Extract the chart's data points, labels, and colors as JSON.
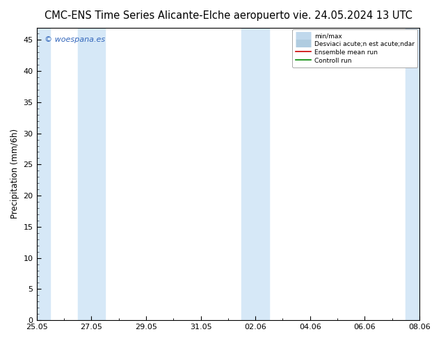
{
  "title_left": "CMC-ENS Time Series Alicante-Elche aeropuerto",
  "title_right": "vie. 24.05.2024 13 UTC",
  "ylabel": "Precipitation (mm/6h)",
  "ylim": [
    0,
    47
  ],
  "yticks": [
    0,
    5,
    10,
    15,
    20,
    25,
    30,
    35,
    40,
    45
  ],
  "x_tick_labels": [
    "25.05",
    "27.05",
    "29.05",
    "31.05",
    "02.06",
    "04.06",
    "06.06",
    "08.06"
  ],
  "x_tick_positions": [
    0,
    2,
    4,
    6,
    8,
    10,
    12,
    14
  ],
  "x_minor_tick_positions": [
    1,
    3,
    5,
    7,
    9,
    11,
    13
  ],
  "x_total": 14,
  "shaded_bands": [
    [
      0,
      0.5
    ],
    [
      1.5,
      2.5
    ],
    [
      7.5,
      8.5
    ],
    [
      13.5,
      14
    ]
  ],
  "shade_color": "#d6e8f7",
  "bg_color": "#ffffff",
  "plot_bg_color": "#ffffff",
  "legend_minmax_color": "#c0d8ec",
  "legend_std_color": "#b0cce0",
  "ensemble_mean_color": "#cc0000",
  "control_run_color": "#008800",
  "watermark_text": "© woespana.es",
  "watermark_color": "#3366bb",
  "title_fontsize": 10.5,
  "axis_fontsize": 8.5,
  "tick_fontsize": 8,
  "legend_label_minmax": "min/max",
  "legend_label_std": "Desviaci acute;n est acute;ndar",
  "legend_label_ensemble": "Ensemble mean run",
  "legend_label_control": "Controll run"
}
